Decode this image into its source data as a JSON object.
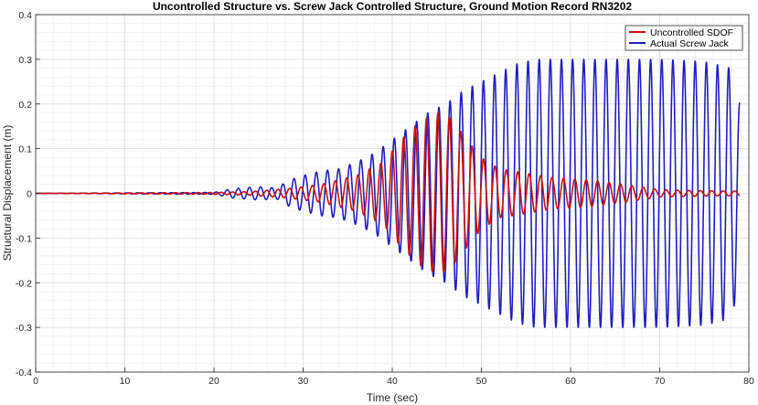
{
  "chart_data": {
    "type": "line",
    "title": "Uncontrolled Structure vs. Screw Jack Controlled Structure, Ground Motion Record RN3202",
    "xlabel": "Time (sec)",
    "ylabel": "Structural Displacement (m)",
    "xlim": [
      0,
      80
    ],
    "ylim": [
      -0.4,
      0.4
    ],
    "xticks": [
      0,
      10,
      20,
      30,
      40,
      50,
      60,
      70,
      80
    ],
    "yticks": [
      -0.4,
      -0.3,
      -0.2,
      -0.1,
      0,
      0.1,
      0.2,
      0.3,
      0.4
    ],
    "xtick_labels": [
      "0",
      "10",
      "20",
      "30",
      "40",
      "50",
      "60",
      "70",
      "80"
    ],
    "ytick_labels": [
      "-0.4",
      "-0.3",
      "-0.2",
      "-0.1",
      "0",
      "0.1",
      "0.2",
      "0.3",
      "0.4"
    ],
    "grid": true,
    "minor_grid": true,
    "legend_position": "top-right",
    "series": [
      {
        "name": "Uncontrolled SDOF",
        "color": "#cc1010",
        "period": 1.28,
        "x": [
          0,
          20,
          24,
          28,
          32,
          36,
          39,
          41,
          43,
          45,
          46.5,
          48,
          50,
          52,
          55,
          58,
          62,
          66,
          70,
          75,
          79
        ],
        "amp": [
          0,
          0.002,
          0.004,
          0.01,
          0.02,
          0.04,
          0.07,
          0.12,
          0.16,
          0.18,
          0.17,
          0.13,
          0.08,
          0.055,
          0.045,
          0.035,
          0.03,
          0.02,
          0.008,
          0.006,
          0.005
        ]
      },
      {
        "name": "Actual Screw Jack",
        "color": "#1f1fbf",
        "period": 1.25,
        "x": [
          0,
          20,
          22,
          25,
          27,
          28.5,
          30,
          32,
          34,
          36,
          38,
          40,
          42,
          44,
          46,
          48,
          50,
          52,
          54,
          56,
          58,
          60,
          62,
          65,
          70,
          75,
          78,
          79
        ],
        "amp": [
          0,
          0.002,
          0.01,
          0.015,
          0.012,
          0.03,
          0.04,
          0.05,
          0.055,
          0.07,
          0.09,
          0.12,
          0.15,
          0.18,
          0.2,
          0.23,
          0.25,
          0.27,
          0.29,
          0.3,
          0.3,
          0.3,
          0.3,
          0.3,
          0.3,
          0.295,
          0.28,
          0.2
        ]
      }
    ]
  }
}
